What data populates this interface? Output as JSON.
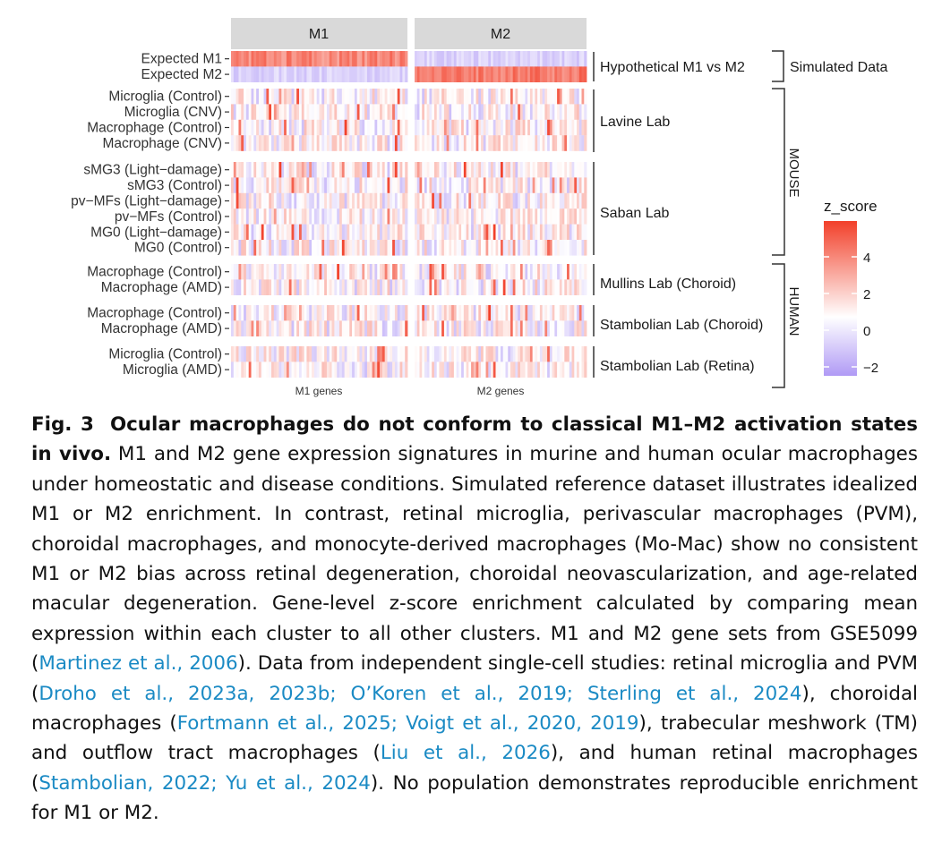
{
  "heatmap": {
    "column_groups": [
      "M1",
      "M2"
    ],
    "x_labels": [
      "M1 genes",
      "M2 genes"
    ],
    "rows": [
      "Expected M1",
      "Expected M2",
      "Microglia (Control)",
      "Microglia (CNV)",
      "Macrophage (Control)",
      "Macrophage (CNV)",
      "sMG3 (Light−damage)",
      "sMG3 (Control)",
      "pv−MFs (Light−damage)",
      "pv−MFs (Control)",
      "MG0 (Light−damage)",
      "MG0 (Control)",
      "Macrophage (Control)",
      "Macrophage (AMD)",
      "Macrophage (Control)",
      "Macrophage (AMD)",
      "Microglia (Control)",
      "Microglia (AMD)"
    ],
    "row_groups": [
      "Hypothetical M1 vs M2",
      "Lavine Lab",
      "Saban Lab",
      "Mullins Lab (Choroid)",
      "Stambolian Lab (Choroid)",
      "Stambolian Lab (Retina)"
    ],
    "species_groups": [
      "Simulated Data",
      "MOUSE",
      "HUMAN"
    ],
    "legend": {
      "title": "z_score",
      "ticks": [
        "4",
        "2",
        "0",
        "−2"
      ],
      "colors": {
        "high": "#f2402a",
        "mid": "#ffffff",
        "low": "#b09af5"
      }
    }
  },
  "caption": {
    "fig_number": "Fig. 3",
    "fig_title": "Ocular macrophages do not conform to classical M1–M2 activation states in vivo.",
    "text_1": " M1 and M2 gene expression signatures in murine and human ocular macrophages under homeostatic and disease conditions. Simulated reference dataset illustrates idealized M1 or M2 enrichment. In contrast, retinal microglia, perivascular macrophages (PVM), choroidal macrophages, and monocyte-derived macrophages (Mo-Mac) show no consistent M1 or M2 bias across retinal degeneration, choroidal neovascularization, and age-related macular degeneration. Gene-level z-score enrichment calculated by comparing mean expression within each cluster to all other clusters. M1 and M2 gene sets from GSE5099 (",
    "cite_1": "Martinez et al., 2006",
    "text_2": "). Data from independent single-cell studies: retinal microglia and PVM (",
    "cite_2": "Droho et al., 2023a, 2023b; O’Koren et al., 2019; Sterling et al., 2024",
    "text_3": "), choroidal macrophages (",
    "cite_3": "Fortmann et al., 2025; Voigt et al., 2020, 2019",
    "text_4": "), trabecular meshwork (TM) and outflow tract macrophages (",
    "cite_4": "Liu et al., 2026",
    "text_5": "), and human retinal macrophages (",
    "cite_5": "Stambolian, 2022; Yu et al., 2024",
    "text_6": "). No population demonstrates reproducible enrichment for M1 or M2."
  }
}
